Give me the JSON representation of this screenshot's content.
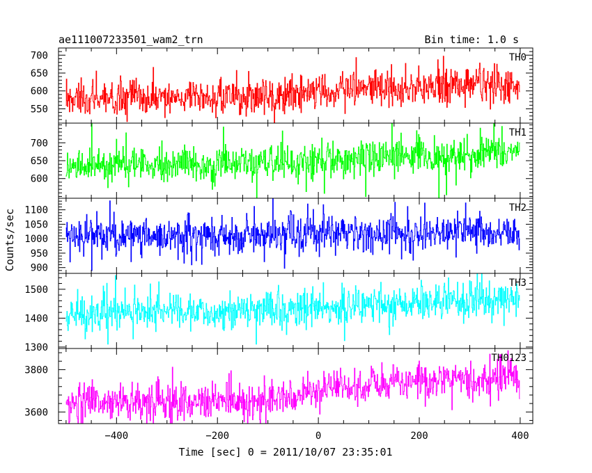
{
  "chart_data": {
    "type": "line",
    "title": "ae111007233501_wam2_trn",
    "subtitle": "Bin time: 1.0 s",
    "xlabel": "Time [sec] 0 = 2011/10/07 23:35:01",
    "ylabel": "Counts/sec",
    "xlim": [
      -515,
      425
    ],
    "x_ticks": [
      -400,
      -200,
      0,
      200,
      400
    ],
    "x_tick_labels": [
      "−400",
      "−200",
      "0",
      "200",
      "400"
    ],
    "bin_time": 1.0,
    "x_range": [
      -500,
      399
    ],
    "series": [
      {
        "name": "TH0",
        "color": "#ff0000",
        "ylim": [
          510,
          720
        ],
        "yticks": [
          550,
          600,
          650,
          700
        ],
        "trend": [
          [
            -500,
            578
          ],
          [
            -100,
            583
          ],
          [
            0,
            598
          ],
          [
            200,
            610
          ],
          [
            399,
            618
          ]
        ],
        "noise": 24,
        "spike": 0.1
      },
      {
        "name": "TH1",
        "color": "#00ff00",
        "ylim": [
          545,
          755
        ],
        "yticks": [
          600,
          650,
          700
        ],
        "trend": [
          [
            -500,
            638
          ],
          [
            -100,
            643
          ],
          [
            0,
            652
          ],
          [
            200,
            662
          ],
          [
            399,
            672
          ]
        ],
        "noise": 24,
        "spike": 0.1
      },
      {
        "name": "TH2",
        "color": "#0000ff",
        "ylim": [
          880,
          1140
        ],
        "yticks": [
          900,
          950,
          1000,
          1050,
          1100
        ],
        "trend": [
          [
            -500,
            1008
          ],
          [
            -60,
            1003
          ],
          [
            -60,
            1023
          ],
          [
            399,
            1023
          ]
        ],
        "noise": 30,
        "spike": 0.1
      },
      {
        "name": "TH3",
        "color": "#00ffff",
        "ylim": [
          1295,
          1555
        ],
        "yticks": [
          1300,
          1400,
          1500
        ],
        "trend": [
          [
            -500,
            1418
          ],
          [
            -100,
            1425
          ],
          [
            0,
            1440
          ],
          [
            200,
            1455
          ],
          [
            399,
            1465
          ]
        ],
        "noise": 30,
        "spike": 0.1
      },
      {
        "name": "TH0123",
        "color": "#ff00ff",
        "ylim": [
          3545,
          3900
        ],
        "yticks": [
          3600,
          3800
        ],
        "trend": [
          [
            -500,
            3640
          ],
          [
            -100,
            3660
          ],
          [
            0,
            3700
          ],
          [
            200,
            3745
          ],
          [
            399,
            3770
          ]
        ],
        "noise": 42,
        "spike": 0.1
      }
    ]
  }
}
